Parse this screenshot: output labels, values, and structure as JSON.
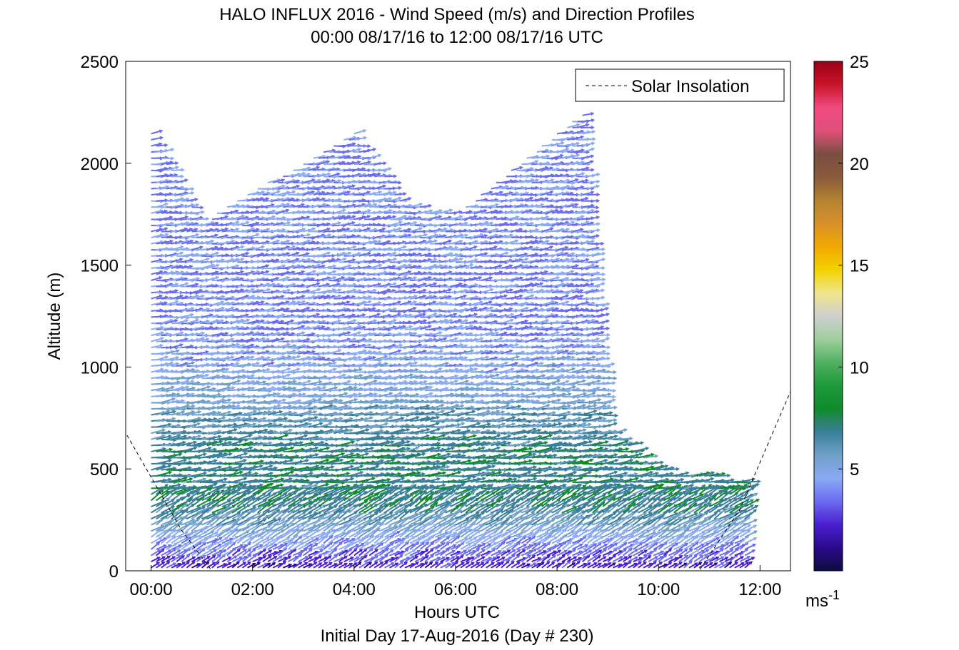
{
  "chart_data": {
    "type": "quiver",
    "title": "HALO INFLUX 2016 - Wind Speed (m/s) and Direction Profiles",
    "subtitle": "00:00 08/17/16 to 12:00 08/17/16  UTC",
    "xlabel": "Hours UTC",
    "xlabel2": "Initial Day 17-Aug-2016 (Day # 230)",
    "ylabel": "Altitude (m)",
    "xlim": [
      -0.5,
      12.6
    ],
    "ylim": [
      0,
      2500
    ],
    "x_ticks": [
      0,
      2,
      4,
      6,
      8,
      10,
      12
    ],
    "x_tick_labels": [
      "00:00",
      "02:00",
      "04:00",
      "06:00",
      "08:00",
      "10:00",
      "12:00"
    ],
    "y_ticks": [
      0,
      500,
      1000,
      1500,
      2000,
      2500
    ],
    "y_tick_labels": [
      "0",
      "500",
      "1000",
      "1500",
      "2000",
      "2500"
    ],
    "grid": false,
    "legend": {
      "position": "top-right",
      "entries": [
        {
          "label": "Solar Insolation",
          "style": "dashed",
          "color": "#000000"
        }
      ]
    },
    "colorbar": {
      "range": [
        0,
        25
      ],
      "ticks": [
        5,
        10,
        15,
        20,
        25
      ],
      "tick_labels": [
        "5",
        "10",
        "15",
        "20",
        "25"
      ],
      "unit": "ms",
      "unit_exp": "-1",
      "colormap": [
        "#0d0d3d",
        "#2b0a8c",
        "#4a1fd0",
        "#6b6bf0",
        "#8aaaf5",
        "#6fa0c8",
        "#3a7f9a",
        "#0f8a2a",
        "#1e9a3a",
        "#4fb060",
        "#9ecf9e",
        "#cfcfcf",
        "#f0e68c",
        "#f2d200",
        "#f2a800",
        "#d8902a",
        "#b5832f",
        "#8a5a3c",
        "#7a4e40",
        "#e0507a",
        "#f04a80",
        "#c81428",
        "#9a0016"
      ]
    },
    "profiles": {
      "start_hour": 0,
      "end_hour": 11.73,
      "step_hour": 0.1,
      "altitude_step": 30,
      "speed_by_altitude": [
        [
          0,
          2
        ],
        [
          300,
          7
        ],
        [
          600,
          7
        ],
        [
          900,
          5
        ],
        [
          1200,
          4
        ],
        [
          1600,
          4
        ],
        [
          2200,
          4
        ]
      ],
      "top_altitude_by_time": [
        [
          0,
          2150
        ],
        [
          1,
          1700
        ],
        [
          1.5,
          1800
        ],
        [
          3,
          2000
        ],
        [
          4,
          2150
        ],
        [
          5,
          1800
        ],
        [
          6,
          1750
        ],
        [
          7,
          1950
        ],
        [
          8.5,
          2250
        ],
        [
          9,
          700
        ],
        [
          10,
          500
        ],
        [
          11.7,
          450
        ]
      ]
    },
    "solar_insolation": {
      "x": [
        -0.6,
        0.6,
        1.2,
        10.8,
        11.6,
        12.6
      ],
      "y": [
        720,
        200,
        0,
        0,
        300,
        880
      ]
    }
  }
}
